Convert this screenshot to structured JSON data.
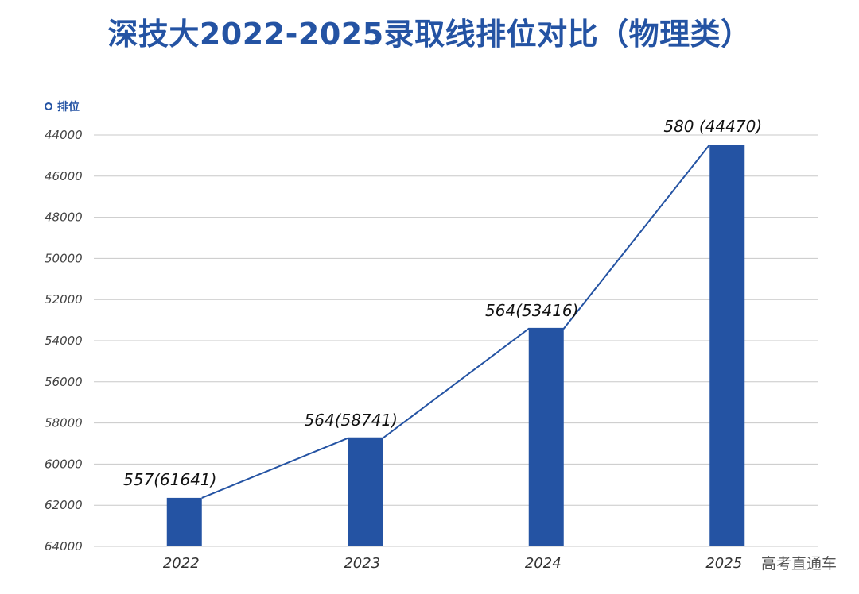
{
  "chart_data": {
    "type": "bar",
    "title": "深技大2022-2025录取线排位对比（物理类）",
    "legend": [
      "排位"
    ],
    "legend_position": "top-left",
    "categories": [
      "2022",
      "2023",
      "2024",
      "2025"
    ],
    "values": [
      61641,
      58741,
      53416,
      44470
    ],
    "scores": [
      557,
      564,
      564,
      580
    ],
    "data_labels": [
      "557(61641)",
      "564(58741)",
      "564(53416)",
      "580 (44470)"
    ],
    "y_axis_inverted": true,
    "ylim": [
      64000,
      44000
    ],
    "yticks": [
      "44000",
      "46000",
      "48000",
      "50000",
      "52000",
      "54000",
      "56000",
      "58000",
      "60000",
      "62000",
      "64000"
    ],
    "grid": true,
    "series_line": true,
    "xlabel": "",
    "ylabel": ""
  },
  "colors": {
    "bar": "#2453a3",
    "line": "#2453a3",
    "grid": "#c8c8c8",
    "title": "#2453a3"
  },
  "watermark": "高考直通车"
}
